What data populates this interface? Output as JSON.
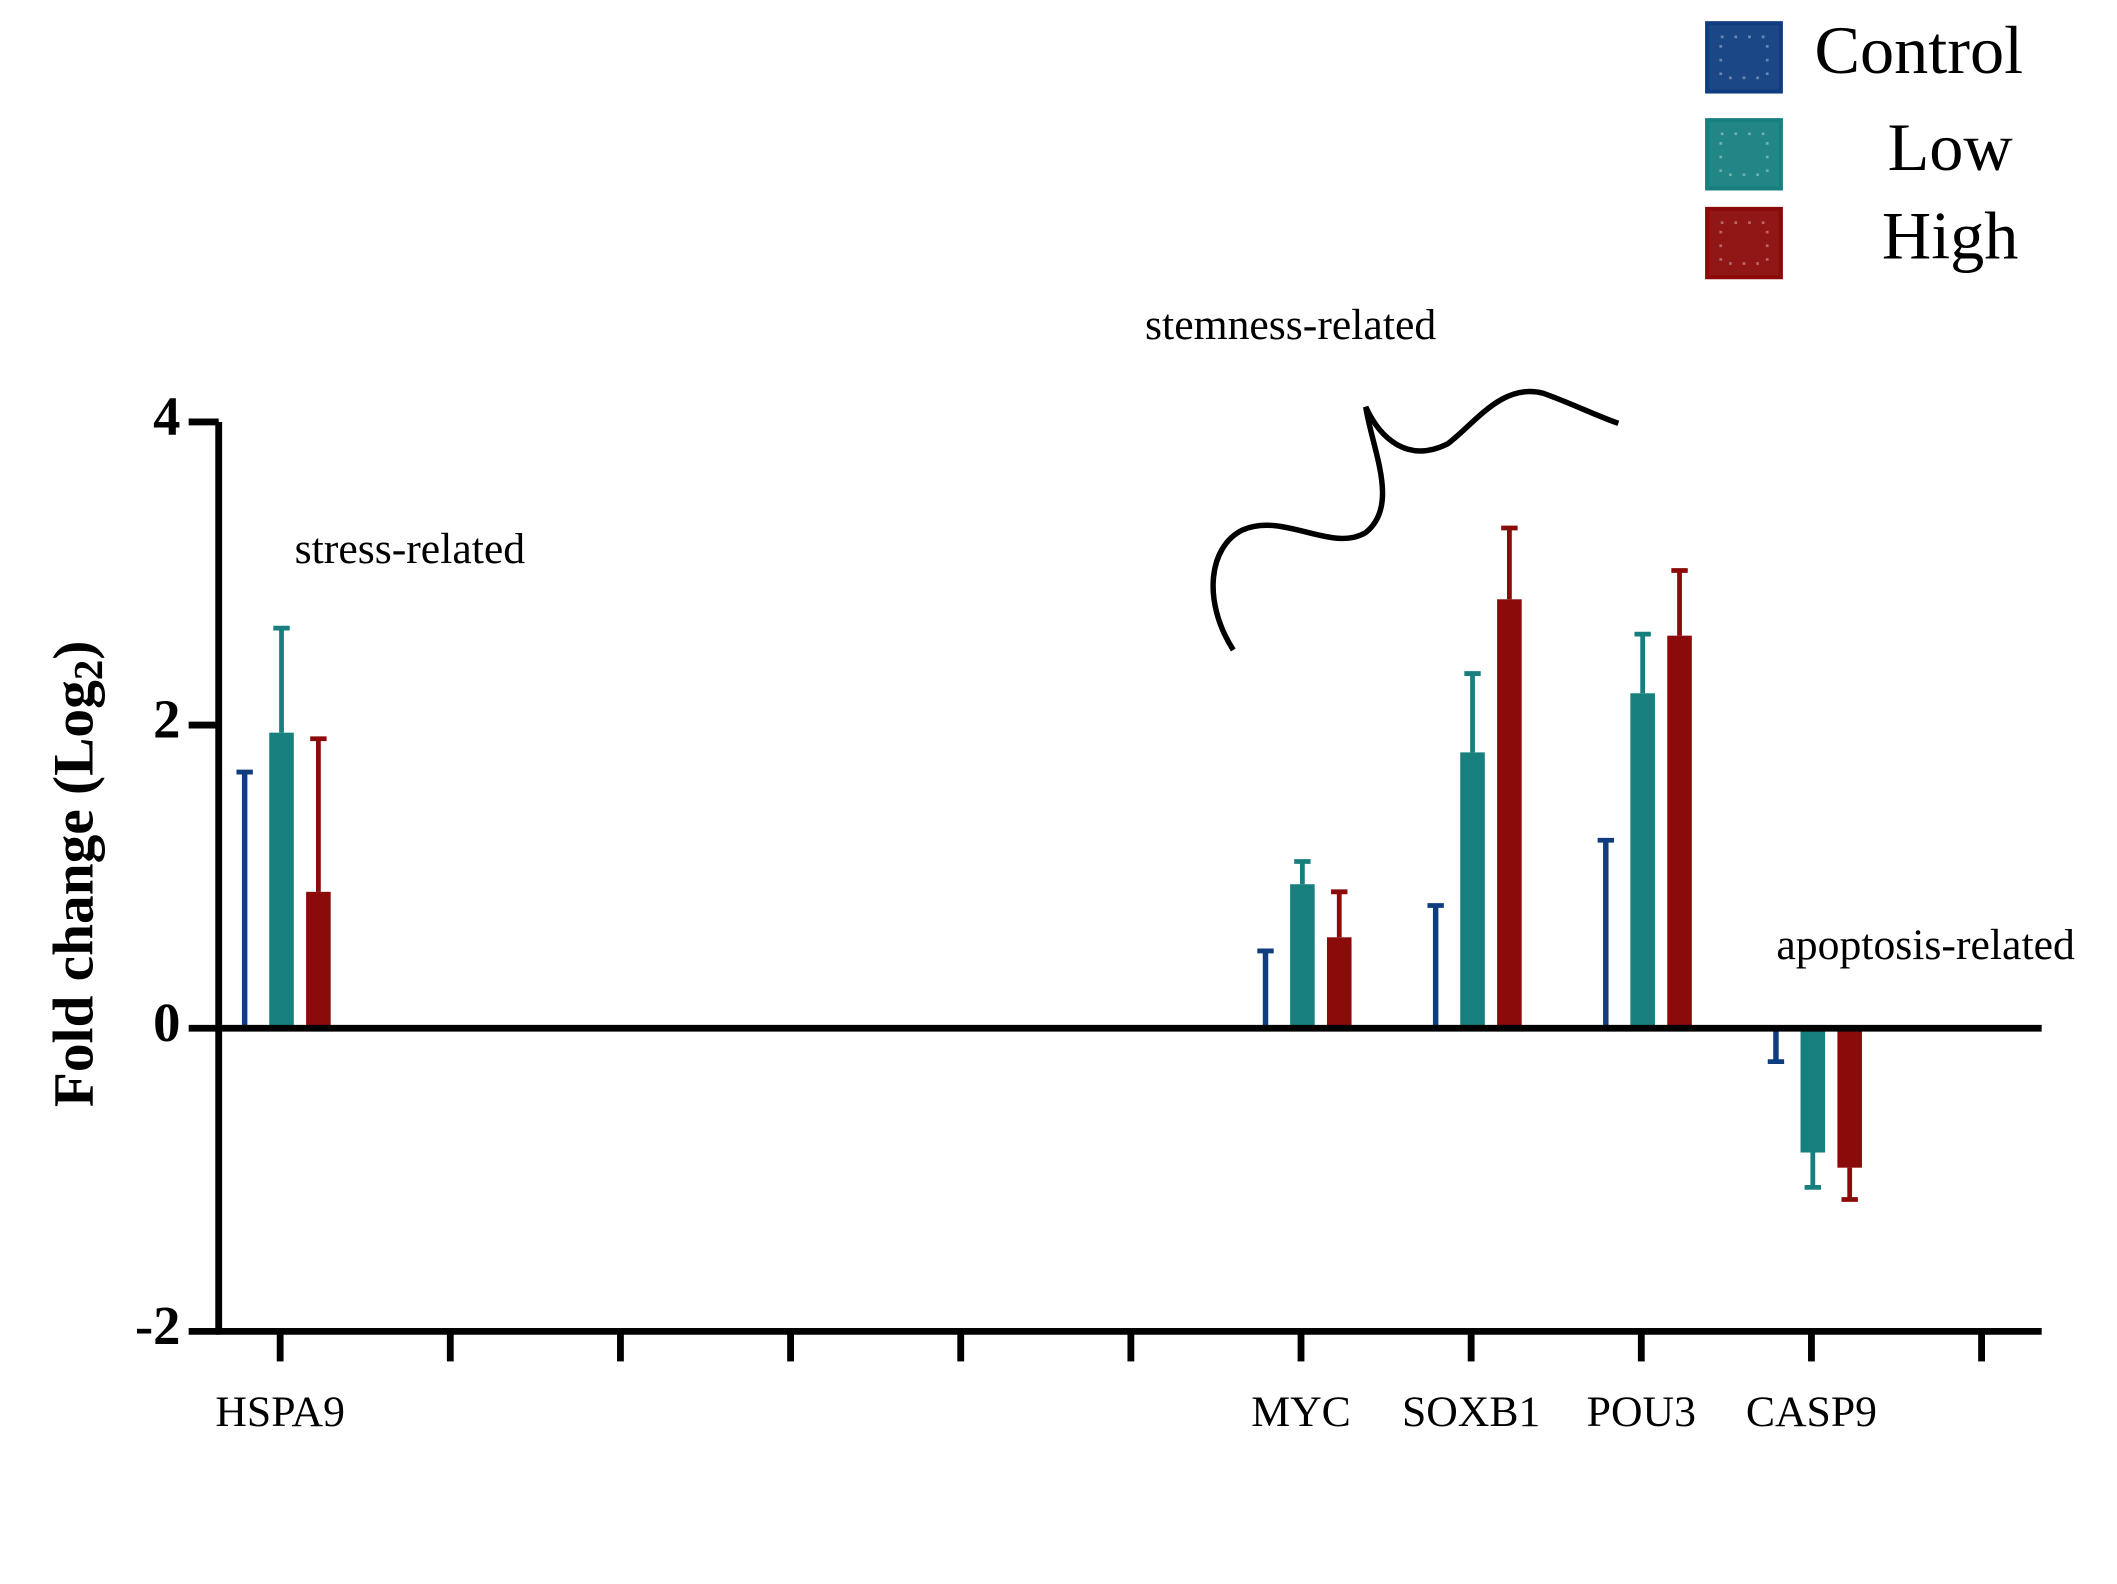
{
  "chart_data": {
    "type": "bar",
    "y_label": {
      "text": "Fold change (Log",
      "subscript": "2",
      "end": ")"
    },
    "annotations": [
      "stress-related",
      "stemness-related",
      "apoptosis-related"
    ],
    "categories": [
      "HSPA9",
      null,
      null,
      null,
      null,
      null,
      "MYC",
      "SOXB1",
      "POU3",
      "CASP9",
      null
    ],
    "series": [
      {
        "name": "Control",
        "color": "#0f3d80",
        "values": [
          1.69,
          0.02,
          0.02,
          0.02,
          0.02,
          0.02,
          0.51,
          0.81,
          1.24,
          -0.22,
          0.01
        ]
      },
      {
        "name": "Low",
        "color": "#17807f",
        "values": [
          1.95,
          0.02,
          0.02,
          0.02,
          -0.01,
          0.02,
          0.95,
          1.82,
          2.21,
          -0.82,
          -0.01
        ],
        "errors": [
          0.69,
          0,
          0,
          0,
          0,
          0,
          0.15,
          0.52,
          0.39,
          0.23,
          0
        ]
      },
      {
        "name": "High",
        "color": "#8b0a0a",
        "values": [
          0.9,
          -0.01,
          -0.01,
          -0.01,
          -0.01,
          0.02,
          0.6,
          2.83,
          2.59,
          -0.92,
          -0.01
        ],
        "errors": [
          1.01,
          0,
          0,
          0,
          0,
          0,
          0.3,
          0.47,
          0.43,
          0.21,
          0
        ]
      }
    ],
    "ylim": [
      -2,
      4
    ],
    "yticks": [
      4,
      2,
      0,
      -2
    ]
  }
}
